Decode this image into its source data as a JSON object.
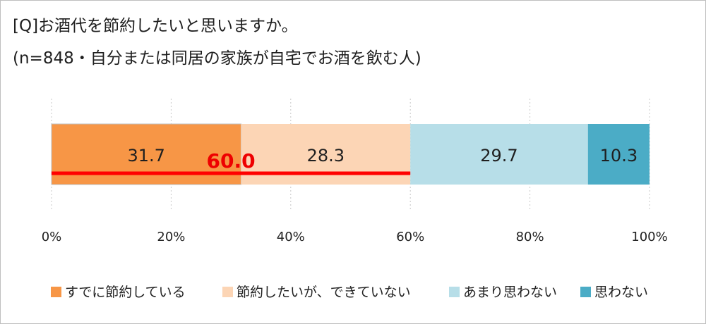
{
  "chart_data": {
    "type": "bar",
    "orientation": "horizontal-stacked",
    "title": "[Q]お酒代を節約したいと思いますか。",
    "subtitle": "(n=848・自分または同居の家族が自宅でお酒を飲む人)",
    "xlim": [
      0,
      100
    ],
    "xticks": [
      "0%",
      "20%",
      "40%",
      "60%",
      "80%",
      "100%"
    ],
    "gridlines": "vertical-dotted",
    "legend_position": "bottom",
    "series": [
      {
        "name": "すでに節約している",
        "value": 31.7,
        "label": "31.7",
        "color": "#f79646"
      },
      {
        "name": "節約したいが、できていない",
        "value": 28.3,
        "label": "28.3",
        "color": "#fcd5b5"
      },
      {
        "name": "あまり思わない",
        "value": 29.7,
        "label": "29.7",
        "color": "#b7dee8"
      },
      {
        "name": "思わない",
        "value": 10.3,
        "label": "10.3",
        "color": "#4bacc6"
      }
    ],
    "annotation": {
      "label": "60.0",
      "value": 60.0,
      "from": 0,
      "to": 60.0,
      "color": "#ff0000"
    }
  }
}
